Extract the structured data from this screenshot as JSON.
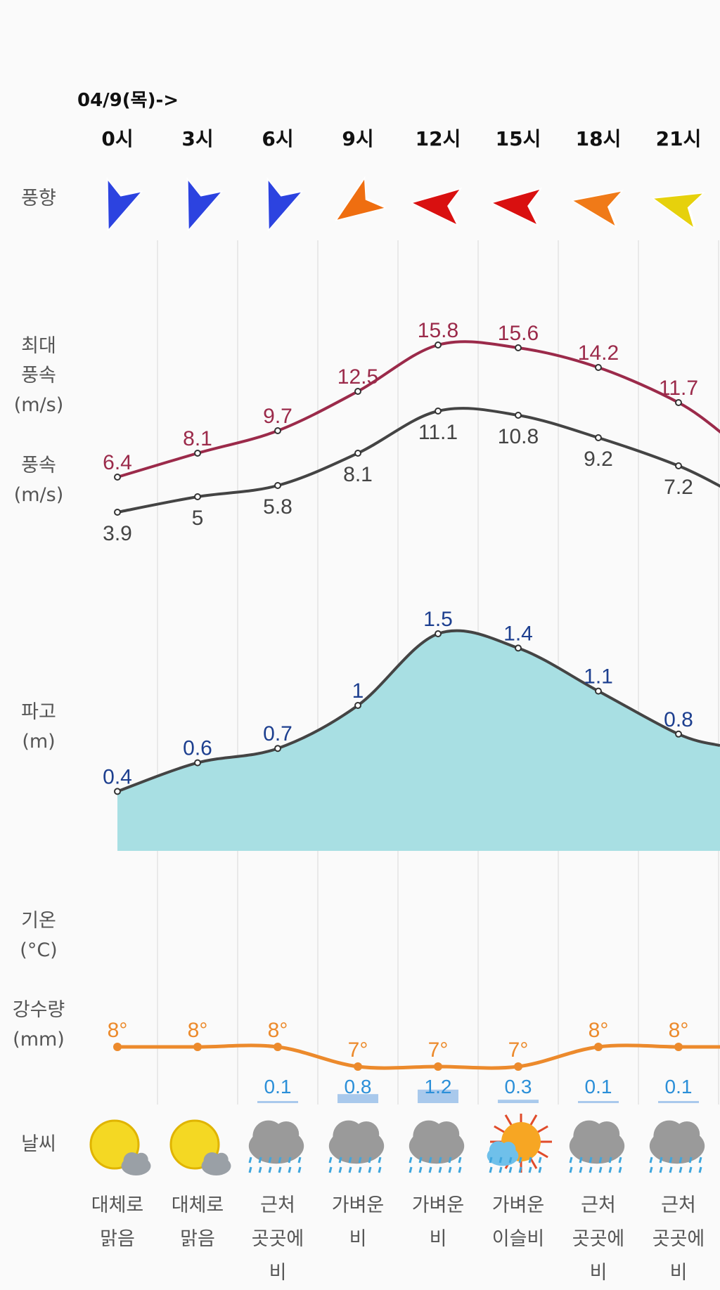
{
  "date_label": "04/9(목)->",
  "row_labels": {
    "wind_direction": "풍향",
    "max_wind_speed": [
      "최대",
      "풍속",
      "(m/s)"
    ],
    "wind_speed": [
      "풍속",
      "(m/s)"
    ],
    "wave_height": [
      "파고",
      "(m)"
    ],
    "temperature": [
      "기온",
      "(°C)"
    ],
    "precipitation": [
      "강수량",
      "(mm)"
    ],
    "weather": "날씨"
  },
  "colors": {
    "max_wind": "#9b2a4a",
    "wind": "#444444",
    "wave_label": "#1d3f8f",
    "wave_fill": "#a8dfe3",
    "temperature": "#ec8a2c",
    "precip_text": "#2b8fd8",
    "precip_bar": "#a9c9ec",
    "grid": "#e3e3e3"
  },
  "chart_data": {
    "type": "line",
    "categories": [
      "0시",
      "3시",
      "6시",
      "9시",
      "12시",
      "15시",
      "18시",
      "21시"
    ],
    "wind_direction": [
      {
        "color": "#2c43e0",
        "rotation_deg": 200
      },
      {
        "color": "#2c43e0",
        "rotation_deg": 200
      },
      {
        "color": "#2c43e0",
        "rotation_deg": 200
      },
      {
        "color": "#ef6e10",
        "rotation_deg": 235
      },
      {
        "color": "#d91010",
        "rotation_deg": 275
      },
      {
        "color": "#d91010",
        "rotation_deg": 275
      },
      {
        "color": "#f07a18",
        "rotation_deg": 280
      },
      {
        "color": "#e6d10c",
        "rotation_deg": 285
      }
    ],
    "series": [
      {
        "key": "max_wind",
        "values": [
          6.4,
          8.1,
          9.7,
          12.5,
          15.8,
          15.6,
          14.2,
          11.7
        ]
      },
      {
        "key": "wind",
        "values": [
          3.9,
          5,
          5.8,
          8.1,
          11.1,
          10.8,
          9.2,
          7.2
        ]
      },
      {
        "key": "wave",
        "values": [
          0.4,
          0.6,
          0.7,
          1,
          1.5,
          1.4,
          1.1,
          0.8
        ]
      },
      {
        "key": "temperature",
        "values": [
          8,
          8,
          8,
          7,
          7,
          7,
          8,
          8
        ],
        "labels": [
          "8°",
          "8°",
          "8°",
          "7°",
          "7°",
          "7°",
          "8°",
          "8°"
        ]
      },
      {
        "key": "precipitation",
        "values": [
          null,
          null,
          0.1,
          0.8,
          1.2,
          0.3,
          0.1,
          0.1
        ],
        "labels": [
          "",
          "",
          "0.1",
          "0.8",
          "1.2",
          "0.3",
          "0.1",
          "0.1"
        ]
      }
    ],
    "weather": [
      {
        "icon": "sun-cloud-icon",
        "text": [
          "대체로",
          "맑음"
        ]
      },
      {
        "icon": "sun-cloud-icon",
        "text": [
          "대체로",
          "맑음"
        ]
      },
      {
        "icon": "rain-cloud-icon",
        "text": [
          "근처",
          "곳곳에",
          "비"
        ]
      },
      {
        "icon": "rain-cloud-icon",
        "text": [
          "가벼운",
          "비"
        ]
      },
      {
        "icon": "rain-cloud-icon",
        "text": [
          "가벼운",
          "비"
        ]
      },
      {
        "icon": "sun-drizzle-icon",
        "text": [
          "가벼운",
          "이슬비"
        ]
      },
      {
        "icon": "rain-cloud-icon",
        "text": [
          "근처",
          "곳곳에",
          "비"
        ]
      },
      {
        "icon": "rain-cloud-icon",
        "text": [
          "근처",
          "곳곳에",
          "비"
        ]
      }
    ]
  }
}
